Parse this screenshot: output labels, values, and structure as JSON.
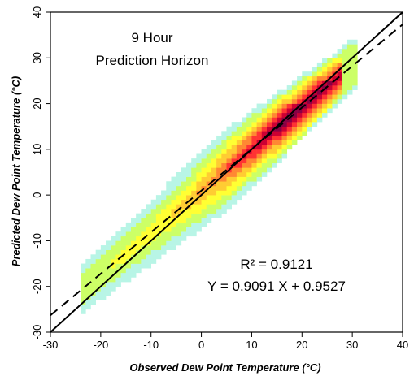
{
  "chart_data": {
    "type": "heatmap",
    "title": "",
    "xlabel": "Observed Dew Point Temperature (°C)",
    "ylabel": "Predicted Dew Point Temperature (°C)",
    "xlim": [
      -30,
      40
    ],
    "ylim": [
      -30,
      40
    ],
    "x_ticks": [
      "-30",
      "-20",
      "-10",
      "0",
      "10",
      "20",
      "30",
      "40"
    ],
    "y_ticks": [
      "-30",
      "-20",
      "-10",
      "0",
      "10",
      "20",
      "30",
      "40"
    ],
    "grid": false,
    "annotations": {
      "horizon_line1": "9 Hour",
      "horizon_line2": "Prediction Horizon",
      "r_squared": "R² = 0.9121",
      "equation": "Y = 0.9091 X + 0.9527"
    },
    "lines": [
      {
        "kind": "identity",
        "style": "solid",
        "slope": 1,
        "intercept": 0
      },
      {
        "kind": "regression",
        "style": "dashed",
        "slope": 0.9091,
        "intercept": 0.9527
      }
    ],
    "density": {
      "x_range": [
        -24,
        31
      ],
      "spread": 3.2,
      "peak_at": [
        20,
        21
      ],
      "colors": [
        "#b8f5e6",
        "#ccff66",
        "#ffff33",
        "#ffcc33",
        "#ff8833",
        "#ff3333",
        "#cc0033",
        "#8a0044"
      ]
    }
  }
}
